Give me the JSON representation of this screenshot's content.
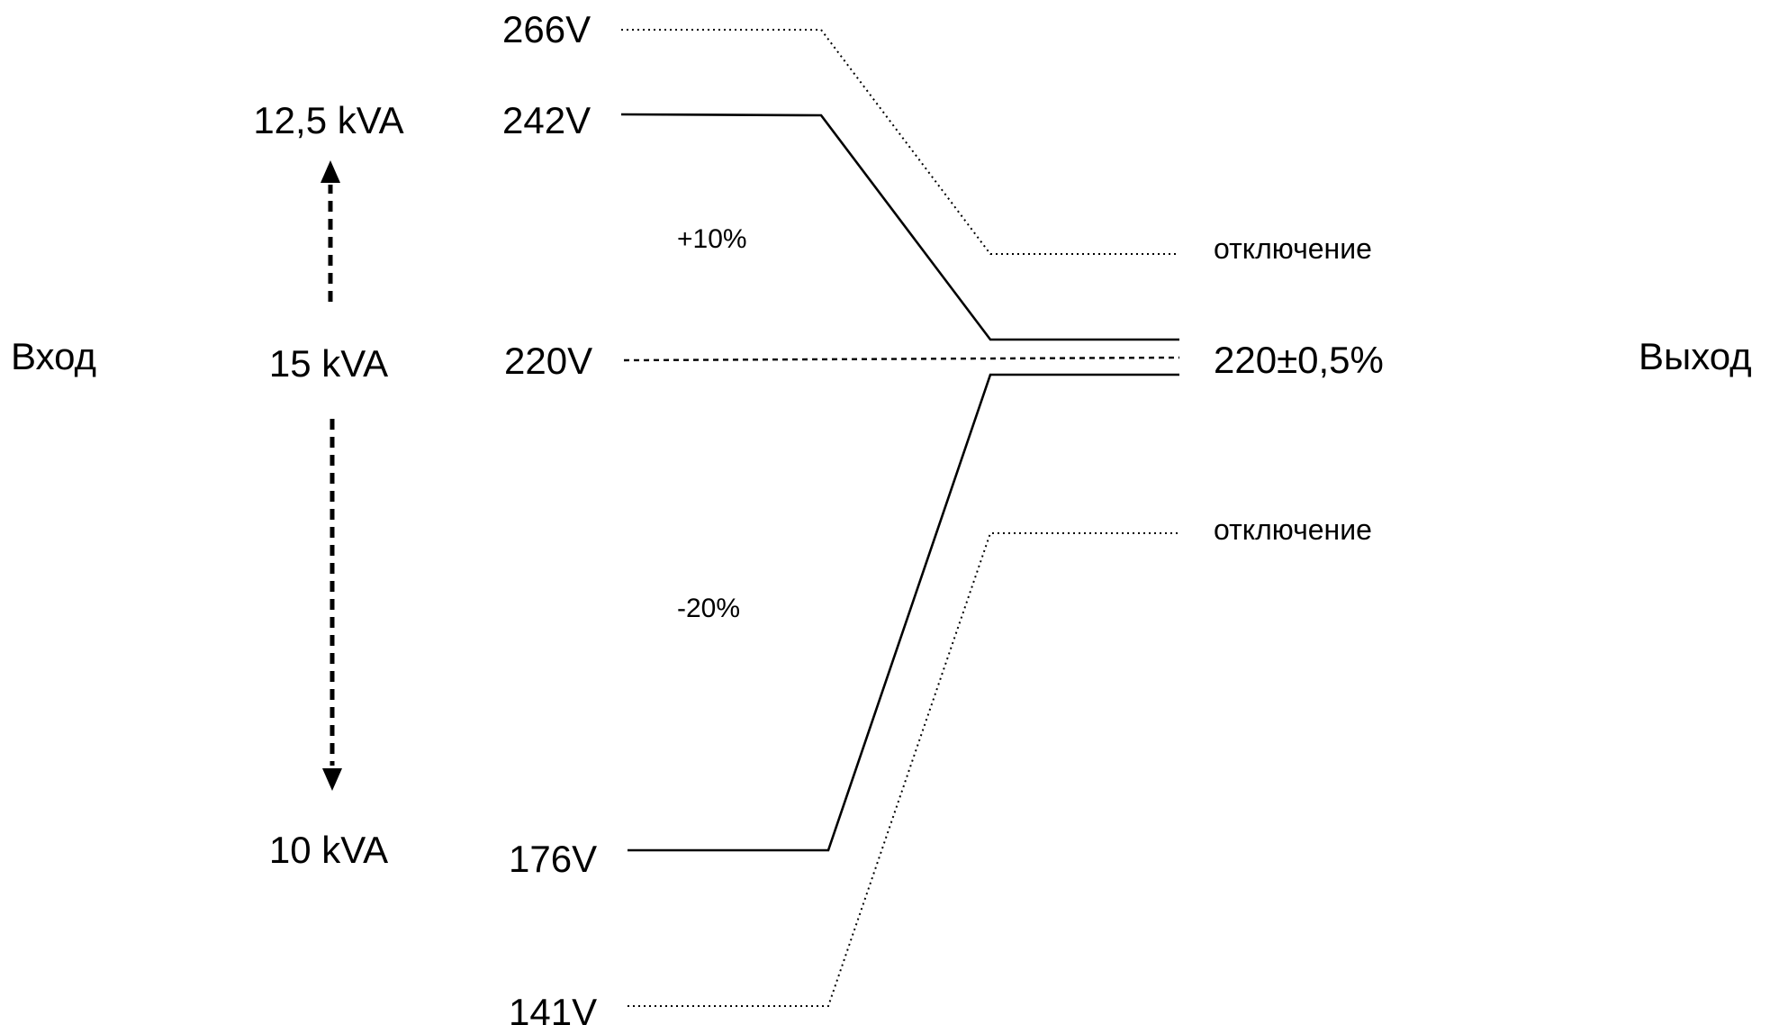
{
  "side_labels": {
    "input": "Вход",
    "output": "Выход"
  },
  "power": {
    "top": "12,5 kVA",
    "middle": "15 kVA",
    "bottom": "10 kVA"
  },
  "voltages": {
    "v266": "266V",
    "v242": "242V",
    "v220": "220V",
    "v176": "176V",
    "v141": "141V"
  },
  "percent": {
    "plus": "+10%",
    "minus": "-20%"
  },
  "output": {
    "shutdown_top": "отключение",
    "regulated": "220±0,5%",
    "shutdown_bottom": "отключение"
  }
}
